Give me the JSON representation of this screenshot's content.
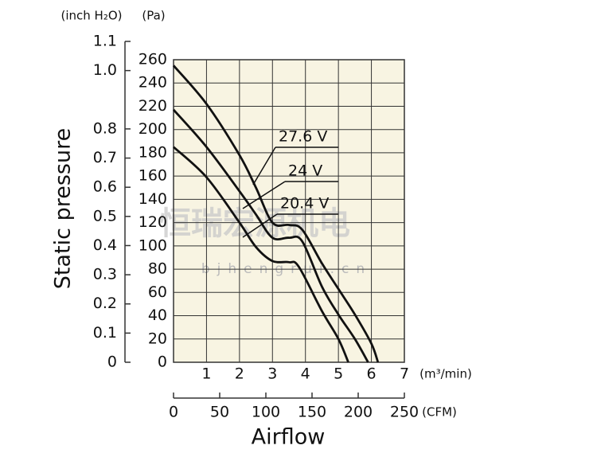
{
  "chart_data": {
    "type": "line",
    "y_label": "Static pressure",
    "x_label": "Airflow",
    "y_unit": "(Pa)",
    "y2_unit": "(inch H₂O)",
    "x_unit": "(m³/min)",
    "x2_unit": "(CFM)",
    "watermark": "恒瑞宏源机电",
    "watermark_url": "bjhengrui.cn",
    "xlim": [
      0,
      7
    ],
    "xticks": [
      1,
      2,
      3,
      4,
      5,
      6,
      7
    ],
    "x2lim": [
      0,
      250
    ],
    "x2ticks": [
      0,
      50,
      100,
      150,
      200,
      250
    ],
    "ylim": [
      0,
      260
    ],
    "yticks": [
      0,
      20,
      40,
      60,
      80,
      100,
      120,
      140,
      160,
      180,
      200,
      220,
      240,
      260
    ],
    "y2lim": [
      0,
      1.1
    ],
    "y2ticks": [
      0,
      0.1,
      0.2,
      0.3,
      0.4,
      0.5,
      0.6,
      0.7,
      0.8,
      {
        "value": 1.0,
        "label": "1.0"
      },
      1.1
    ],
    "grid": true,
    "plot_background": "#f8f4e2",
    "series": [
      {
        "name": "27.6 V",
        "color": "#111111",
        "x": [
          0,
          1,
          2,
          2.5,
          3,
          3.5,
          3.9,
          4.5,
          5,
          5.5,
          6,
          6.2
        ],
        "values": [
          255,
          222,
          178,
          150,
          120,
          118,
          114,
          85,
          63,
          41,
          16,
          0
        ]
      },
      {
        "name": "24 V",
        "color": "#111111",
        "x": [
          0,
          1,
          2,
          2.5,
          3,
          3.5,
          3.9,
          4.5,
          5,
          5.5,
          5.9
        ],
        "values": [
          217,
          185,
          147,
          127,
          107,
          107,
          104,
          65,
          41,
          20,
          0
        ]
      },
      {
        "name": "20.4 V",
        "color": "#111111",
        "x": [
          0,
          1,
          2,
          2.5,
          3,
          3.5,
          3.8,
          4.5,
          5,
          5.3
        ],
        "values": [
          185,
          159,
          120,
          99,
          87,
          86,
          82,
          44,
          20,
          0
        ]
      }
    ]
  }
}
